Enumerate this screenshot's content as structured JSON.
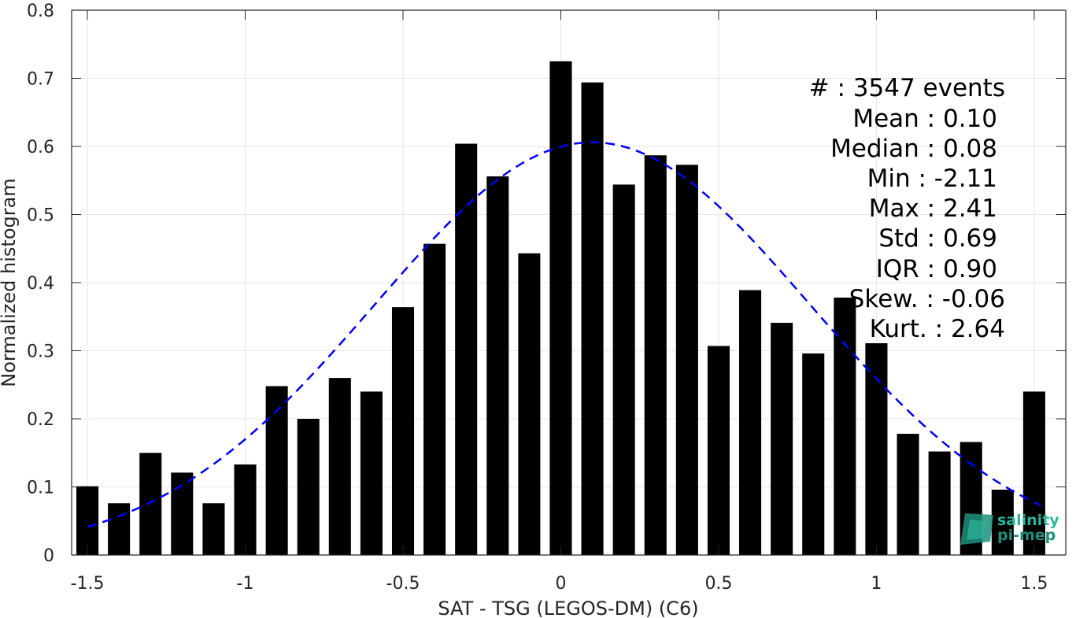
{
  "chart_data": {
    "type": "bar",
    "xlabel": "SAT - TSG (LEGOS-DM) (C6)",
    "ylabel": "Normalized histogram",
    "xlim": [
      -1.55,
      1.6
    ],
    "ylim": [
      0,
      0.8
    ],
    "x_ticks": [
      "-1.5",
      "-1",
      "-0.5",
      "0",
      "0.5",
      "1",
      "1.5"
    ],
    "y_ticks": [
      "0",
      "0.1",
      "0.2",
      "0.3",
      "0.4",
      "0.5",
      "0.6",
      "0.7",
      "0.8"
    ],
    "grid": true,
    "bar_color": "#000000",
    "bins": [
      -1.5,
      -1.4,
      -1.3,
      -1.2,
      -1.1,
      -1.0,
      -0.9,
      -0.8,
      -0.7,
      -0.6,
      -0.5,
      -0.4,
      -0.3,
      -0.2,
      -0.1,
      0.0,
      0.1,
      0.2,
      0.3,
      0.4,
      0.5,
      0.6,
      0.7,
      0.8,
      0.9,
      1.0,
      1.1,
      1.2,
      1.3,
      1.4,
      1.5
    ],
    "values": [
      0.101,
      0.076,
      0.15,
      0.121,
      0.076,
      0.133,
      0.248,
      0.2,
      0.26,
      0.24,
      0.364,
      0.457,
      0.604,
      0.556,
      0.443,
      0.725,
      0.694,
      0.544,
      0.587,
      0.573,
      0.307,
      0.389,
      0.341,
      0.296,
      0.378,
      0.311,
      0.178,
      0.152,
      0.166,
      0.096,
      0.24
    ],
    "fit_curve": {
      "type": "gaussian",
      "mean": 0.1,
      "std": 0.69,
      "peak": 0.606,
      "x_range": [
        -1.5,
        1.52
      ],
      "color": "#0000ff",
      "style": "dashed"
    },
    "stats": {
      "count": "#  : 3547 events",
      "mean": "Mean : 0.10",
      "median": "Median : 0.08",
      "min": "Min : -2.11",
      "max": "Max : 2.41",
      "std": "Std : 0.69",
      "iqr": "IQR : 0.90",
      "skew": "Skew. : -0.06",
      "kurt": "Kurt. : 2.64"
    },
    "legend_position": "top-right"
  },
  "logo": {
    "line1": "salinity",
    "line2": "pi-mep",
    "color": "#2bb59a"
  }
}
